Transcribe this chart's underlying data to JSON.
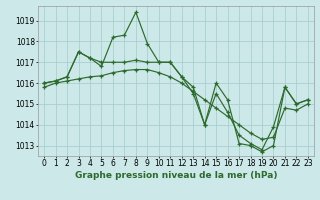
{
  "title": "Graphe pression niveau de la mer (hPa)",
  "hours": [
    0,
    1,
    2,
    3,
    4,
    5,
    6,
    7,
    8,
    9,
    10,
    11,
    12,
    13,
    14,
    15,
    16,
    17,
    18,
    19,
    20,
    21,
    22,
    23
  ],
  "series1": [
    1016.0,
    1016.1,
    1016.3,
    1017.5,
    1017.2,
    1016.8,
    1018.2,
    1018.3,
    1019.4,
    1017.9,
    1017.0,
    1017.0,
    1016.3,
    1015.5,
    1014.0,
    1016.0,
    1015.2,
    1013.1,
    1013.0,
    1012.7,
    1013.0,
    1015.8,
    1015.0,
    1015.2
  ],
  "series2": [
    1016.0,
    1016.1,
    1016.3,
    1017.5,
    1017.2,
    1017.0,
    1017.0,
    1017.0,
    1017.1,
    1017.0,
    1017.0,
    1017.0,
    1016.3,
    1015.8,
    1014.0,
    1015.5,
    1014.6,
    1013.5,
    1013.1,
    1012.8,
    1013.9,
    1015.8,
    1015.0,
    1015.2
  ],
  "series3": [
    1015.8,
    1016.0,
    1016.1,
    1016.2,
    1016.3,
    1016.35,
    1016.5,
    1016.6,
    1016.65,
    1016.65,
    1016.5,
    1016.3,
    1016.0,
    1015.6,
    1015.2,
    1014.8,
    1014.4,
    1014.0,
    1013.6,
    1013.3,
    1013.4,
    1014.8,
    1014.7,
    1015.0
  ],
  "ylim": [
    1012.5,
    1019.7
  ],
  "yticks": [
    1013,
    1014,
    1015,
    1016,
    1017,
    1018,
    1019
  ],
  "x_labels": [
    "0",
    "1",
    "2",
    "3",
    "4",
    "5",
    "6",
    "7",
    "8",
    "9",
    "10",
    "11",
    "12",
    "13",
    "14",
    "15",
    "16",
    "17",
    "18",
    "19",
    "20",
    "21",
    "22",
    "23"
  ],
  "line_color": "#2d6a2d",
  "bg_color": "#cce8e8",
  "grid_color": "#aacece",
  "tick_fontsize": 5.5,
  "title_fontsize": 6.5
}
